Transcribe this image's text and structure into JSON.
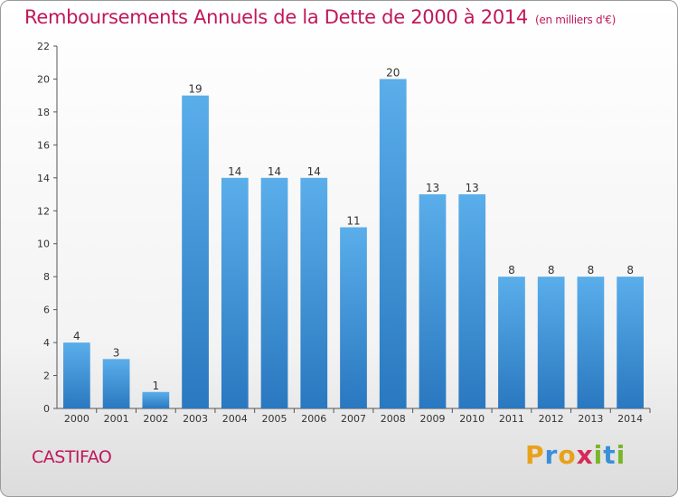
{
  "title": "Remboursements Annuels de la Dette de 2000 à 2014",
  "subtitle": "(en milliers d'€)",
  "commune": "CASTIFAO",
  "logo": {
    "letters": [
      "P",
      "r",
      "o",
      "x",
      "i",
      "t",
      "i"
    ],
    "colors": [
      "#e8a21a",
      "#3a8fd8",
      "#e8a21a",
      "#d42a5a",
      "#7ab52a",
      "#3a8fd8",
      "#7ab52a"
    ]
  },
  "colors": {
    "bar_top": "#5aaeea",
    "bar_bottom": "#2a78c0",
    "title": "#c0185a"
  },
  "chart_data": {
    "type": "bar",
    "categories": [
      "2000",
      "2001",
      "2002",
      "2003",
      "2004",
      "2005",
      "2006",
      "2007",
      "2008",
      "2009",
      "2010",
      "2011",
      "2012",
      "2013",
      "2014"
    ],
    "values": [
      4,
      3,
      1,
      19,
      14,
      14,
      14,
      11,
      20,
      13,
      13,
      8,
      8,
      8,
      8
    ],
    "ylim": [
      0,
      22
    ],
    "yticks": [
      0,
      2,
      4,
      6,
      8,
      10,
      12,
      14,
      16,
      18,
      20,
      22
    ],
    "grid": false,
    "data_labels": true
  }
}
